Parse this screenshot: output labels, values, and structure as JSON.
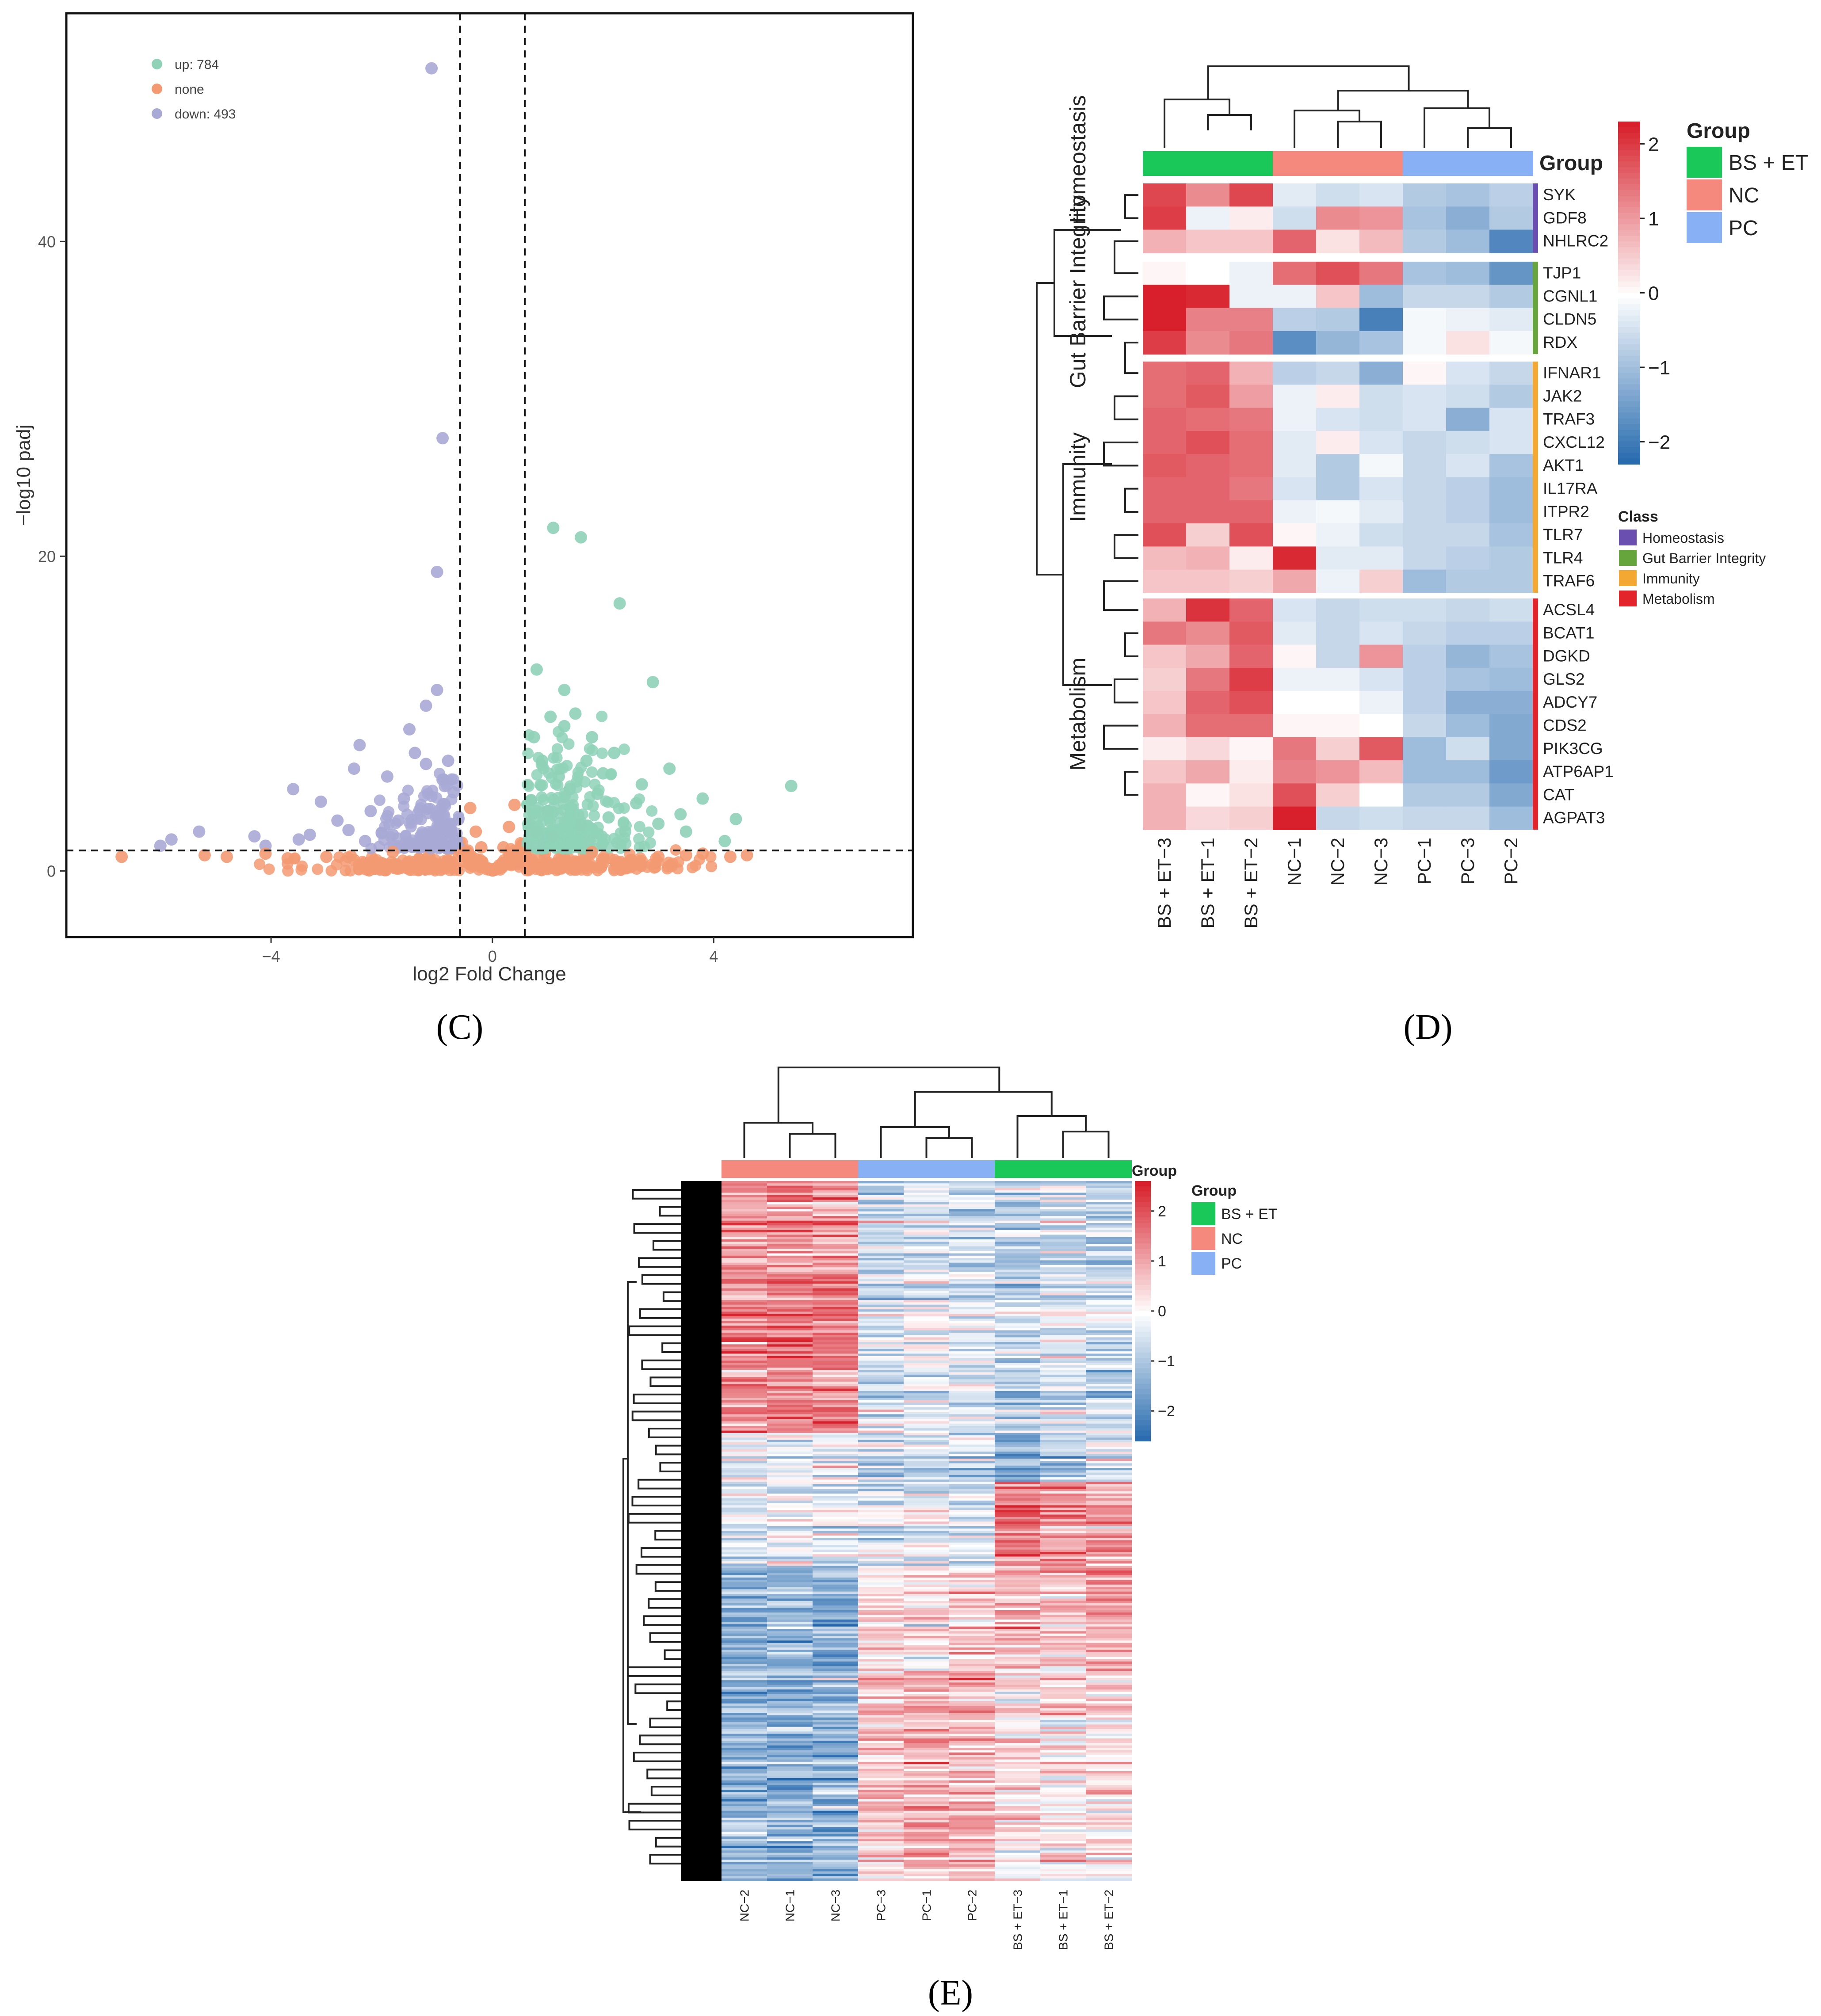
{
  "panel_labels": {
    "c": "(C)",
    "d": "(D)",
    "e": "(E)"
  },
  "colors": {
    "up": "#8fd2b8",
    "none": "#f39a72",
    "down": "#a9a9d6",
    "bs_et": "#1ac85a",
    "nc": "#f5897d",
    "pc": "#87b0f5",
    "homeostasis": "#6a4fb0",
    "gut_barrier": "#66a43c",
    "immunity": "#f2a833",
    "metabolism": "#e4242b",
    "heat_high": "#d7202b",
    "heat_mid": "#ffffff",
    "heat_low": "#2166ac"
  },
  "chart_data": [
    {
      "id": "C",
      "type": "scatter",
      "title": "",
      "xlabel": "log2 Fold Change",
      "ylabel": "−log10 padj",
      "xlim": [
        -7.7,
        7.6
      ],
      "ylim": [
        -4.2,
        54.5
      ],
      "xticks": [
        {
          "v": -4,
          "label": "−4"
        },
        {
          "v": 0,
          "label": "0"
        },
        {
          "v": 4,
          "label": "4"
        }
      ],
      "yticks": [
        {
          "v": 0,
          "label": "0"
        },
        {
          "v": 20,
          "label": "20"
        },
        {
          "v": 40,
          "label": "40"
        }
      ],
      "thresholds": {
        "log2fc": [
          -0.585,
          0.585
        ],
        "padj_log10": 1.3
      },
      "legend": {
        "position": "top-left",
        "items": [
          {
            "key": "up",
            "label": "up: 784"
          },
          {
            "key": "none",
            "label": "none"
          },
          {
            "key": "down",
            "label": "down: 493"
          }
        ]
      },
      "series": [
        {
          "name": "down",
          "points": [
            [
              -1.1,
              51
            ],
            [
              -0.9,
              27.5
            ],
            [
              -1.0,
              19
            ],
            [
              -1.2,
              10.5
            ],
            [
              -1.0,
              11.5
            ],
            [
              -1.5,
              9
            ],
            [
              -2.4,
              8
            ],
            [
              -2.5,
              6.5
            ],
            [
              -1.9,
              6
            ],
            [
              -3.6,
              5.2
            ],
            [
              -3.1,
              4.4
            ],
            [
              -2.2,
              3.8
            ],
            [
              -1.6,
              4.6
            ],
            [
              -2.8,
              3.2
            ],
            [
              -4.3,
              2.2
            ],
            [
              -5.3,
              2.5
            ],
            [
              -5.8,
              2.0
            ],
            [
              -6.0,
              1.6
            ],
            [
              -3.5,
              2.0
            ],
            [
              -2.0,
              2.4
            ],
            [
              -1.4,
              7.5
            ],
            [
              -1.2,
              6.8
            ],
            [
              -0.9,
              5.8
            ],
            [
              -0.8,
              7.0
            ],
            [
              -0.7,
              5.0
            ],
            [
              -1.7,
              3.2
            ],
            [
              -2.6,
              2.6
            ],
            [
              -3.3,
              2.3
            ],
            [
              -4.1,
              1.6
            ],
            [
              -1.0,
              3.5
            ],
            [
              -0.75,
              3.0
            ],
            [
              -1.3,
              2.2
            ],
            [
              -0.65,
              2.0
            ],
            [
              -1.8,
              2.3
            ],
            [
              -2.3,
              1.9
            ],
            [
              -0.95,
              2.8
            ]
          ]
        },
        {
          "name": "up",
          "points": [
            [
              1.1,
              21.8
            ],
            [
              1.6,
              21.2
            ],
            [
              2.3,
              17
            ],
            [
              2.9,
              12
            ],
            [
              1.3,
              11.5
            ],
            [
              0.8,
              12.8
            ],
            [
              1.5,
              10
            ],
            [
              1.8,
              8.5
            ],
            [
              2.2,
              7.5
            ],
            [
              3.2,
              6.5
            ],
            [
              3.8,
              4.6
            ],
            [
              2.6,
              4.3
            ],
            [
              5.4,
              5.4
            ],
            [
              4.4,
              3.3
            ],
            [
              3.5,
              2.5
            ],
            [
              4.2,
              1.9
            ],
            [
              0.9,
              7
            ],
            [
              1.2,
              6
            ],
            [
              1.4,
              5.2
            ],
            [
              0.7,
              4.5
            ],
            [
              1.0,
              3.8
            ],
            [
              1.9,
              4.9
            ],
            [
              2.1,
              3.4
            ],
            [
              0.8,
              2.5
            ],
            [
              1.6,
              2.9
            ],
            [
              2.4,
              2.5
            ],
            [
              3.0,
              3.0
            ],
            [
              1.3,
              9.2
            ],
            [
              1.7,
              7.0
            ],
            [
              0.75,
              8.5
            ],
            [
              1.05,
              9.8
            ],
            [
              2.7,
              5.5
            ],
            [
              3.4,
              3.6
            ],
            [
              2.0,
              6.2
            ],
            [
              0.65,
              3.0
            ],
            [
              1.1,
              2.2
            ]
          ]
        },
        {
          "name": "none",
          "points": [
            [
              -6.7,
              0.9
            ],
            [
              -5.2,
              1.0
            ],
            [
              -4.8,
              0.9
            ],
            [
              -4.1,
              1.1
            ],
            [
              -3.7,
              0.8
            ],
            [
              -3.0,
              0.9
            ],
            [
              -2.5,
              0.7
            ],
            [
              -2.0,
              0.5
            ],
            [
              -1.5,
              0.6
            ],
            [
              -1.0,
              0.4
            ],
            [
              -0.5,
              0.6
            ],
            [
              -0.3,
              2.5
            ],
            [
              -0.2,
              1.5
            ],
            [
              0.0,
              0.1
            ],
            [
              0.2,
              1.5
            ],
            [
              0.3,
              2.8
            ],
            [
              0.5,
              0.6
            ],
            [
              1.0,
              0.4
            ],
            [
              1.5,
              0.6
            ],
            [
              2.0,
              0.5
            ],
            [
              2.5,
              0.7
            ],
            [
              3.0,
              0.9
            ],
            [
              3.5,
              1.0
            ],
            [
              3.8,
              1.1
            ],
            [
              4.3,
              0.9
            ],
            [
              4.6,
              1.0
            ],
            [
              -1.8,
              1.2
            ],
            [
              -0.6,
              1.0
            ],
            [
              0.6,
              1.0
            ],
            [
              1.8,
              1.2
            ],
            [
              -0.4,
              4.0
            ],
            [
              0.4,
              4.2
            ],
            [
              -0.5,
              1.2
            ],
            [
              0.5,
              1.2
            ]
          ]
        }
      ]
    },
    {
      "id": "D",
      "type": "heatmap",
      "title": "",
      "columns": [
        "BS + ET−3",
        "BS + ET−1",
        "BS + ET−2",
        "NC−1",
        "NC−2",
        "NC−3",
        "PC−1",
        "PC−3",
        "PC−2"
      ],
      "column_groups": [
        "bs_et",
        "bs_et",
        "bs_et",
        "nc",
        "nc",
        "nc",
        "pc",
        "pc",
        "pc"
      ],
      "group_annotation_label": "Group",
      "classes": [
        {
          "key": "homeostasis",
          "name": "Homeostasis",
          "genes": [
            "SYK",
            "GDF8",
            "NHLRC2"
          ],
          "values": [
            [
              1.9,
              1.2,
              1.9,
              -0.3,
              -0.5,
              -0.4,
              -0.8,
              -0.9,
              -0.7
            ],
            [
              2.0,
              -0.2,
              0.2,
              -0.5,
              1.2,
              1.1,
              -0.9,
              -1.2,
              -0.8
            ],
            [
              0.8,
              0.6,
              0.6,
              1.6,
              0.3,
              0.7,
              -0.8,
              -1.0,
              -1.8
            ]
          ]
        },
        {
          "key": "gut_barrier",
          "name": "Gut Barrier Integrity",
          "genes": [
            "TJP1",
            "CGNL1",
            "CLDN5",
            "RDX"
          ],
          "values": [
            [
              0.1,
              0.0,
              -0.2,
              1.5,
              1.8,
              1.4,
              -0.9,
              -1.0,
              -1.6
            ],
            [
              2.3,
              2.2,
              -0.2,
              -0.2,
              0.6,
              -1.0,
              -0.6,
              -0.6,
              -0.8
            ],
            [
              2.3,
              1.3,
              1.3,
              -0.7,
              -0.8,
              -1.9,
              -0.1,
              -0.2,
              -0.3
            ],
            [
              2.0,
              1.2,
              1.4,
              -1.7,
              -1.1,
              -0.9,
              -0.1,
              0.3,
              -0.1
            ]
          ]
        },
        {
          "key": "immunity",
          "name": "Immunity",
          "genes": [
            "IFNAR1",
            "JAK2",
            "TRAF3",
            "CXCL12",
            "AKT1",
            "IL17RA",
            "ITPR2",
            "TLR7",
            "TLR4",
            "TRAF6"
          ],
          "values": [
            [
              1.5,
              1.6,
              0.8,
              -0.7,
              -0.6,
              -1.2,
              0.1,
              -0.4,
              -0.6
            ],
            [
              1.5,
              1.7,
              1.0,
              -0.2,
              0.2,
              -0.5,
              -0.4,
              -0.5,
              -0.8
            ],
            [
              1.6,
              1.5,
              1.4,
              -0.2,
              -0.4,
              -0.5,
              -0.4,
              -1.2,
              -0.4
            ],
            [
              1.6,
              1.8,
              1.5,
              -0.3,
              0.2,
              -0.4,
              -0.6,
              -0.5,
              -0.4
            ],
            [
              1.7,
              1.6,
              1.5,
              -0.3,
              -0.8,
              -0.1,
              -0.6,
              -0.4,
              -0.9
            ],
            [
              1.6,
              1.6,
              1.4,
              -0.4,
              -0.8,
              -0.4,
              -0.6,
              -0.7,
              -1.0
            ],
            [
              1.6,
              1.6,
              1.6,
              -0.2,
              -0.1,
              -0.3,
              -0.6,
              -0.7,
              -1.0
            ],
            [
              1.8,
              0.5,
              1.8,
              0.1,
              -0.2,
              -0.5,
              -0.6,
              -0.6,
              -0.9
            ],
            [
              0.7,
              0.8,
              0.2,
              2.2,
              -0.3,
              -0.3,
              -0.6,
              -0.7,
              -0.8
            ],
            [
              0.6,
              0.6,
              0.5,
              0.9,
              -0.2,
              0.5,
              -1.0,
              -0.8,
              -0.8
            ]
          ]
        },
        {
          "key": "metabolism",
          "name": "Metabolism",
          "genes": [
            "ACSL4",
            "BCAT1",
            "DGKD",
            "GLS2",
            "ADCY7",
            "CDS2",
            "PIK3CG",
            "ATP6AP1",
            "CAT",
            "AGPAT3"
          ],
          "values": [
            [
              0.8,
              2.1,
              1.6,
              -0.4,
              -0.6,
              -0.5,
              -0.5,
              -0.6,
              -0.5
            ],
            [
              1.4,
              1.2,
              1.7,
              -0.3,
              -0.6,
              -0.4,
              -0.6,
              -0.7,
              -0.7
            ],
            [
              0.6,
              0.9,
              1.6,
              0.1,
              -0.6,
              1.1,
              -0.7,
              -1.1,
              -0.9
            ],
            [
              0.5,
              1.4,
              2.0,
              -0.2,
              -0.2,
              -0.4,
              -0.7,
              -0.9,
              -1.0
            ],
            [
              0.6,
              1.6,
              1.8,
              0.0,
              0.0,
              -0.2,
              -0.7,
              -1.2,
              -1.2
            ],
            [
              0.8,
              1.5,
              1.5,
              0.1,
              0.1,
              0.0,
              -0.6,
              -1.0,
              -1.3
            ],
            [
              0.2,
              0.4,
              0.1,
              1.4,
              0.5,
              1.7,
              -1.0,
              -0.5,
              -1.3
            ],
            [
              0.6,
              0.9,
              0.2,
              1.3,
              1.1,
              0.7,
              -1.0,
              -1.0,
              -1.5
            ],
            [
              0.8,
              0.1,
              0.3,
              1.8,
              0.5,
              0.0,
              -0.8,
              -0.8,
              -1.3
            ],
            [
              0.8,
              0.4,
              0.5,
              2.3,
              -0.6,
              -0.5,
              -0.6,
              -0.6,
              -1.0
            ]
          ]
        }
      ],
      "colorbar": {
        "min": -2.3,
        "max": 2.3,
        "ticks": [
          {
            "v": 2,
            "label": "2"
          },
          {
            "v": 1,
            "label": "1"
          },
          {
            "v": 0,
            "label": "0"
          },
          {
            "v": -1,
            "label": "−1"
          },
          {
            "v": -2,
            "label": "−2"
          }
        ]
      },
      "legend_group": {
        "title": "Group",
        "items": [
          {
            "key": "bs_et",
            "label": "BS + ET"
          },
          {
            "key": "nc",
            "label": "NC"
          },
          {
            "key": "pc",
            "label": "PC"
          }
        ]
      },
      "legend_class": {
        "title": "Class",
        "items": [
          {
            "key": "homeostasis",
            "label": "Homeostasis"
          },
          {
            "key": "gut_barrier",
            "label": "Gut Barrier Integrity"
          },
          {
            "key": "immunity",
            "label": "Immunity"
          },
          {
            "key": "metabolism",
            "label": "Metabolism"
          }
        ]
      }
    },
    {
      "id": "E",
      "type": "heatmap",
      "title": "",
      "columns": [
        "NC−2",
        "NC−1",
        "NC−3",
        "PC−3",
        "PC−1",
        "PC−2",
        "BS + ET−3",
        "BS + ET−1",
        "BS + ET−2"
      ],
      "column_groups": [
        "nc",
        "nc",
        "nc",
        "pc",
        "pc",
        "pc",
        "bs_et",
        "bs_et",
        "bs_et"
      ],
      "group_annotation_label": "Group",
      "row_count": 1277,
      "row_blocks": [
        {
          "rows": 0.36,
          "means": [
            1.3,
            1.5,
            1.4,
            -0.5,
            -0.3,
            -0.4,
            -0.8,
            -0.5,
            -0.6
          ]
        },
        {
          "rows": 0.07,
          "means": [
            -0.2,
            -0.3,
            -0.1,
            -0.6,
            -0.5,
            -0.6,
            -1.3,
            -0.8,
            -0.4
          ]
        },
        {
          "rows": 0.12,
          "means": [
            -0.4,
            -0.3,
            -0.5,
            -0.5,
            -0.4,
            -0.6,
            1.5,
            1.2,
            1.1
          ]
        },
        {
          "rows": 0.15,
          "means": [
            -1.3,
            -1.2,
            -1.4,
            0.5,
            0.3,
            0.6,
            0.8,
            0.6,
            1.1
          ]
        },
        {
          "rows": 0.3,
          "means": [
            -1.2,
            -1.3,
            -1.3,
            0.7,
            1.0,
            0.9,
            0.3,
            0.4,
            0.4
          ]
        }
      ],
      "colorbar": {
        "min": -2.6,
        "max": 2.6,
        "ticks": [
          {
            "v": 2,
            "label": "2"
          },
          {
            "v": 1,
            "label": "1"
          },
          {
            "v": 0,
            "label": "0"
          },
          {
            "v": -1,
            "label": "−1"
          },
          {
            "v": -2,
            "label": "−2"
          }
        ]
      },
      "legend_group": {
        "title": "Group",
        "items": [
          {
            "key": "bs_et",
            "label": "BS + ET"
          },
          {
            "key": "nc",
            "label": "NC"
          },
          {
            "key": "pc",
            "label": "PC"
          }
        ]
      }
    }
  ]
}
